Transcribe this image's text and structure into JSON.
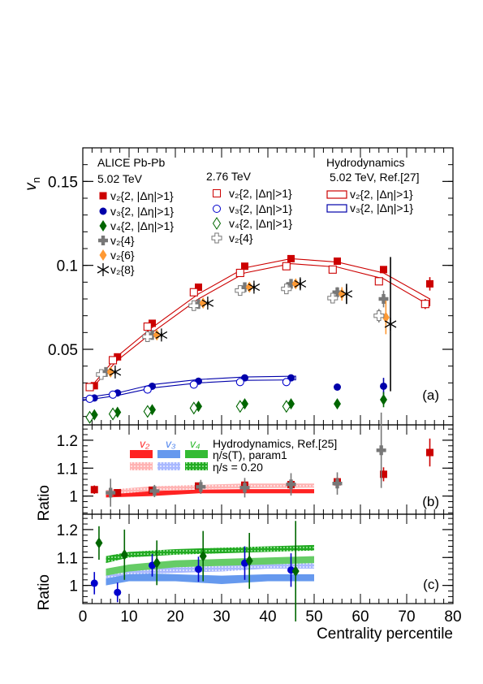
{
  "chart_data": [
    {
      "panel": "(a)",
      "type": "scatter",
      "ylabel": "v",
      "ylabel_sub": "n",
      "xlim": [
        0,
        80
      ],
      "ylim": [
        0.005,
        0.17
      ],
      "yticks": [
        "0.05",
        "0.1",
        "0.15"
      ],
      "ytick_values": [
        0.05,
        0.1,
        0.15
      ],
      "experiment": "ALICE Pb-Pb",
      "energy_502": "5.02 TeV",
      "energy_276": "2.76 TeV",
      "hydro_title": "Hydrodynamics",
      "hydro_ref": "5.02 TeV, Ref.[27]",
      "legend": {
        "v2_2": "v₂{2, |Δη|>1}",
        "v3_2": "v₃{2, |Δη|>1}",
        "v4_2": "v₄{2, |Δη|>1}",
        "v2_4": "v₂{4}",
        "v2_6": "v₂{6}",
        "v2_8": "v₂{8}"
      },
      "series": [
        {
          "key": "v2_2_502",
          "color": "#cc0000",
          "marker": "filled-square",
          "x": [
            2.5,
            7.5,
            15,
            25,
            35,
            45,
            55,
            65,
            75
          ],
          "y": [
            0.0283,
            0.0455,
            0.0655,
            0.087,
            0.0995,
            0.104,
            0.1025,
            0.0975,
            0.089
          ],
          "err": [
            0.0005,
            0.0005,
            0.0005,
            0.0005,
            0.0005,
            0.0006,
            0.001,
            0.002,
            0.004
          ]
        },
        {
          "key": "v3_2_502",
          "color": "#0000aa",
          "marker": "filled-circle",
          "x": [
            2.5,
            7.5,
            15,
            25,
            35,
            45,
            55,
            65
          ],
          "y": [
            0.021,
            0.024,
            0.028,
            0.031,
            0.033,
            0.033,
            0.0275,
            0.028
          ],
          "err": [
            0.0004,
            0.0004,
            0.0004,
            0.0005,
            0.0006,
            0.0008,
            0.002,
            0.005
          ]
        },
        {
          "key": "v4_2_502",
          "color": "#006600",
          "marker": "filled-diamond",
          "x": [
            2.5,
            7.5,
            15,
            25,
            35,
            45,
            55,
            65
          ],
          "y": [
            0.011,
            0.0125,
            0.014,
            0.016,
            0.0175,
            0.0175,
            0.0175,
            0.02
          ],
          "err": [
            0.0005,
            0.0005,
            0.0005,
            0.0006,
            0.0008,
            0.001,
            0.0025,
            0.0045
          ]
        },
        {
          "key": "v2_4_502",
          "color": "#777777",
          "marker": "filled-cross",
          "x": [
            5,
            15,
            25,
            35,
            45,
            55,
            65
          ],
          "y": [
            0.0365,
            0.0585,
            0.077,
            0.087,
            0.089,
            0.084,
            0.08
          ],
          "err": [
            0.001,
            0.0008,
            0.0008,
            0.001,
            0.0015,
            0.003,
            0.005
          ]
        },
        {
          "key": "v2_6_502",
          "color": "#ff9933",
          "marker": "filled-diamond",
          "x": [
            6,
            16,
            26,
            36,
            46,
            56,
            65.5
          ],
          "y": [
            0.0365,
            0.0585,
            0.0775,
            0.087,
            0.089,
            0.083,
            0.069
          ],
          "err": [
            0.001,
            0.001,
            0.001,
            0.0012,
            0.002,
            0.004,
            0.01
          ]
        },
        {
          "key": "v2_8_502",
          "color": "#000000",
          "marker": "star",
          "x": [
            7,
            17,
            27,
            37,
            47,
            57,
            66.5
          ],
          "y": [
            0.0365,
            0.0585,
            0.0775,
            0.087,
            0.089,
            0.083,
            0.065
          ],
          "err": [
            0.0015,
            0.0015,
            0.0015,
            0.002,
            0.003,
            0.006,
            0.04
          ]
        },
        {
          "key": "v2_2_276",
          "color": "#cc0000",
          "marker": "open-square",
          "x": [
            1.5,
            6.5,
            14,
            24,
            34,
            44,
            54,
            64,
            74
          ],
          "y": [
            0.0275,
            0.0435,
            0.0635,
            0.084,
            0.0955,
            0.0995,
            0.0975,
            0.0905,
            0.077
          ],
          "err": [
            0.0004,
            0.0004,
            0.0004,
            0.0004,
            0.0004,
            0.0005,
            0.0008,
            0.0015,
            0.003
          ]
        },
        {
          "key": "v3_2_276",
          "color": "#0000cc",
          "marker": "open-circle",
          "x": [
            1.5,
            6.5,
            14,
            24,
            34,
            44
          ],
          "y": [
            0.0205,
            0.023,
            0.026,
            0.029,
            0.0305,
            0.0305
          ],
          "err": [
            0.0003,
            0.0003,
            0.0003,
            0.0004,
            0.0005,
            0.0007
          ]
        },
        {
          "key": "v4_2_276",
          "color": "#006600",
          "marker": "open-diamond",
          "x": [
            1.5,
            6.5,
            14,
            24,
            34,
            44
          ],
          "y": [
            0.0095,
            0.0115,
            0.013,
            0.015,
            0.016,
            0.016
          ],
          "err": [
            0.0004,
            0.0004,
            0.0004,
            0.0005,
            0.0006,
            0.0008
          ]
        },
        {
          "key": "v2_4_276",
          "color": "#777777",
          "marker": "open-cross",
          "x": [
            4,
            14,
            24,
            34,
            44,
            54,
            64
          ],
          "y": [
            0.035,
            0.0575,
            0.076,
            0.085,
            0.086,
            0.0805,
            0.07
          ],
          "err": [
            0.0008,
            0.0008,
            0.0008,
            0.001,
            0.0015,
            0.0025,
            0.004
          ]
        }
      ],
      "hydro_bands": [
        {
          "key": "v2_hydro",
          "color": "#cc0000",
          "x": [
            2.5,
            7.5,
            15,
            25,
            35,
            45,
            55,
            65,
            75
          ],
          "low": [
            0.0285,
            0.0435,
            0.06,
            0.08,
            0.0955,
            0.101,
            0.099,
            0.092,
            0.076
          ],
          "high": [
            0.03,
            0.046,
            0.063,
            0.083,
            0.0985,
            0.104,
            0.102,
            0.0955,
            0.08
          ]
        },
        {
          "key": "v3_hydro",
          "color": "#0000aa",
          "x": [
            0,
            7.5,
            15,
            25,
            35,
            46
          ],
          "low": [
            0.0195,
            0.0225,
            0.027,
            0.03,
            0.0315,
            0.0318
          ],
          "high": [
            0.021,
            0.024,
            0.029,
            0.032,
            0.0335,
            0.034
          ]
        }
      ],
      "hydro_legend": [
        "v₂{2, |Δη|>1}",
        "v₃{2, |Δη|>1}"
      ]
    },
    {
      "panel": "(b)",
      "type": "scatter",
      "ylabel": "Ratio",
      "xlim": [
        0,
        80
      ],
      "ylim": [
        0.935,
        1.255
      ],
      "yticks": [
        "1",
        "1.1",
        "1.2"
      ],
      "ytick_values": [
        1.0,
        1.1,
        1.2
      ],
      "hydro_title": "Hydrodynamics, Ref.[25]",
      "harmonic_labels": [
        "v₂",
        "v₃",
        "v₄"
      ],
      "harmonic_colors": [
        "#ff3333",
        "#5588ee",
        "#33bb33"
      ],
      "band_labels": [
        "η/s(T), param1",
        "η/s = 0.20"
      ],
      "series": [
        {
          "key": "v2_2_ratio",
          "color": "#cc0000",
          "marker": "filled-square",
          "x": [
            2.5,
            7.5,
            15,
            25,
            35,
            45,
            55,
            65,
            75
          ],
          "y": [
            1.023,
            1.012,
            1.021,
            1.036,
            1.039,
            1.041,
            1.051,
            1.078,
            1.156
          ],
          "err": [
            0.015,
            0.012,
            0.01,
            0.01,
            0.01,
            0.012,
            0.015,
            0.025,
            0.05
          ]
        },
        {
          "key": "v2_4_ratio",
          "color": "#777777",
          "marker": "filled-cross",
          "x": [
            6,
            15.5,
            25.5,
            35,
            45,
            55,
            64.5
          ],
          "y": [
            1.012,
            1.018,
            1.033,
            1.03,
            1.042,
            1.045,
            1.164
          ],
          "err": [
            0.05,
            0.022,
            0.025,
            0.035,
            0.04,
            0.04,
            0.135
          ]
        }
      ],
      "bands": [
        {
          "key": "v2_param1",
          "color": "#ff2222",
          "pattern": "solid",
          "x": [
            5,
            15,
            25,
            35,
            50
          ],
          "low": [
            0.995,
            1.0,
            1.01,
            1.01,
            1.01
          ],
          "high": [
            1.015,
            1.018,
            1.023,
            1.025,
            1.025
          ]
        },
        {
          "key": "v2_eta020",
          "color": "#ff9999",
          "pattern": "dotted",
          "x": [
            5,
            15,
            25,
            35,
            50
          ],
          "low": [
            1.005,
            1.018,
            1.025,
            1.028,
            1.03
          ],
          "high": [
            1.022,
            1.035,
            1.04,
            1.045,
            1.045
          ]
        }
      ]
    },
    {
      "panel": "(c)",
      "type": "scatter",
      "ylabel": "Ratio",
      "xlabel": "Centrality percentile",
      "xlim": [
        0,
        80
      ],
      "xticks": [
        "0",
        "10",
        "20",
        "30",
        "40",
        "50",
        "60",
        "70",
        "80"
      ],
      "xtick_values": [
        0,
        10,
        20,
        30,
        40,
        50,
        60,
        70,
        80
      ],
      "ylim": [
        0.935,
        1.255
      ],
      "yticks": [
        "1",
        "1.1",
        "1.2"
      ],
      "ytick_values": [
        1.0,
        1.1,
        1.2
      ],
      "series": [
        {
          "key": "v3_ratio",
          "color": "#0000cc",
          "marker": "filled-circle",
          "x": [
            2.5,
            7.5,
            15,
            25,
            35,
            45
          ],
          "y": [
            1.008,
            0.975,
            1.072,
            1.058,
            1.08,
            1.055
          ],
          "err": [
            0.04,
            0.035,
            0.04,
            0.045,
            0.06,
            0.06
          ]
        },
        {
          "key": "v4_ratio",
          "color": "#006600",
          "marker": "filled-diamond",
          "x": [
            3.5,
            9,
            16,
            26,
            36,
            46
          ],
          "y": [
            1.152,
            1.11,
            1.081,
            1.105,
            1.088,
            1.051
          ],
          "err": [
            0.06,
            0.09,
            0.08,
            0.09,
            0.1,
            0.18
          ]
        }
      ],
      "bands": [
        {
          "key": "v3_param1",
          "color": "#6699ee",
          "pattern": "solid",
          "x": [
            5,
            10,
            20,
            30,
            40,
            50
          ],
          "low": [
            1.0,
            1.015,
            1.015,
            1.005,
            1.015,
            1.015
          ],
          "high": [
            1.025,
            1.045,
            1.04,
            1.035,
            1.04,
            1.04
          ]
        },
        {
          "key": "v3_eta020",
          "color": "#99aaff",
          "pattern": "dotted",
          "x": [
            5,
            10,
            20,
            30,
            40,
            50
          ],
          "low": [
            1.025,
            1.04,
            1.045,
            1.05,
            1.06,
            1.06
          ],
          "high": [
            1.045,
            1.06,
            1.065,
            1.07,
            1.08,
            1.08
          ]
        },
        {
          "key": "v4_param1",
          "color": "#66cc66",
          "pattern": "solid",
          "x": [
            5,
            10,
            20,
            30,
            40,
            50
          ],
          "low": [
            1.035,
            1.05,
            1.065,
            1.07,
            1.075,
            1.08
          ],
          "high": [
            1.06,
            1.075,
            1.09,
            1.095,
            1.1,
            1.105
          ]
        },
        {
          "key": "v4_eta020",
          "color": "#33bb33",
          "pattern": "dotted",
          "x": [
            5,
            10,
            20,
            30,
            40,
            50
          ],
          "low": [
            1.08,
            1.1,
            1.11,
            1.115,
            1.12,
            1.125
          ],
          "high": [
            1.105,
            1.12,
            1.13,
            1.135,
            1.14,
            1.145
          ]
        }
      ]
    }
  ]
}
